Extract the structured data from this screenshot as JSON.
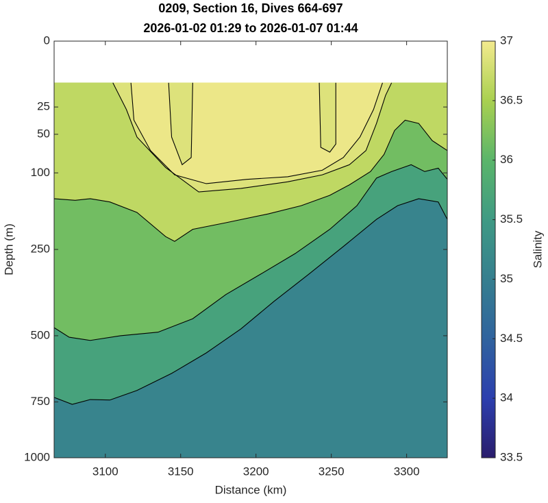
{
  "chart_data": {
    "type": "contour",
    "title": "0209, Section 16, Dives 664-697",
    "subtitle": "2026-01-02 01:29 to 2026-01-07 01:44",
    "x_label": "Distance (km)",
    "y_label": "Depth (m)",
    "colorbar_label": "Salinity",
    "xlim": [
      3066,
      3327
    ],
    "xticks": [
      3100,
      3150,
      3200,
      3250,
      3300
    ],
    "ylim": [
      0,
      1000
    ],
    "yscale": "sqrt",
    "y_reversed": true,
    "yticks": [
      0,
      25,
      50,
      100,
      250,
      500,
      750,
      1000
    ],
    "clim": [
      33.5,
      37
    ],
    "cticks": [
      33.5,
      34,
      34.5,
      35,
      35.5,
      36,
      36.5,
      37
    ],
    "colormap": [
      "#2a1d6c",
      "#2c3fae",
      "#30639e",
      "#367f8f",
      "#3f9a84",
      "#5ab56a",
      "#a9d050",
      "#f3ea8e"
    ],
    "line_color": "#000000",
    "contours": [
      {
        "level": 35.5,
        "x": [
          3066,
          3078,
          3090,
          3103,
          3121,
          3144,
          3167,
          3190,
          3212,
          3235,
          3258,
          3280,
          3294,
          3308,
          3321,
          3327
        ],
        "y": [
          731,
          760,
          740,
          742,
          703,
          636,
          560,
          477,
          390,
          313,
          243,
          183,
          156,
          143,
          149,
          183
        ]
      },
      {
        "level": 36,
        "x": [
          3066,
          3076,
          3090,
          3110,
          3135,
          3158,
          3180,
          3203,
          3226,
          3249,
          3267,
          3280,
          3290,
          3303,
          3312,
          3321,
          3327
        ],
        "y": [
          473,
          505,
          516,
          500,
          488,
          444,
          370,
          313,
          260,
          204,
          156,
          108,
          98,
          88,
          98,
          93,
          110
        ]
      },
      {
        "level": 36.5,
        "x": [
          3066,
          3080,
          3090,
          3103,
          3121,
          3140,
          3146,
          3158,
          3180,
          3208,
          3230,
          3249,
          3262,
          3276,
          3285,
          3292,
          3299,
          3308,
          3317,
          3327
        ],
        "y": [
          143,
          146,
          143,
          149,
          169,
          220,
          231,
          204,
          190,
          172,
          156,
          137,
          119,
          98,
          74,
          46,
          36,
          39,
          57,
          69
        ]
      },
      {
        "level": 36.7,
        "x": [
          3105,
          3114,
          3121,
          3140,
          3162,
          3190,
          3221,
          3244,
          3262,
          3273,
          3280,
          3286,
          3290
        ],
        "y": [
          10,
          27,
          53,
          92,
          131,
          125,
          114,
          103,
          88,
          69,
          39,
          17,
          10
        ]
      },
      {
        "level": 36.8,
        "x": [
          3117,
          3119,
          3130,
          3146,
          3167,
          3194,
          3221,
          3244,
          3258,
          3269,
          3278,
          3284
        ],
        "y": [
          10,
          36,
          69,
          103,
          117,
          110,
          106,
          96,
          78,
          53,
          27,
          10
        ]
      },
      {
        "level": 36.7,
        "x": [
          3142,
          3144,
          3151,
          3157,
          3158
        ],
        "y": [
          10,
          53,
          88,
          78,
          10
        ]
      },
      {
        "level": 36.7,
        "x": [
          3242,
          3243,
          3249,
          3253,
          3253
        ],
        "y": [
          10,
          65,
          71,
          61,
          10
        ]
      }
    ]
  }
}
